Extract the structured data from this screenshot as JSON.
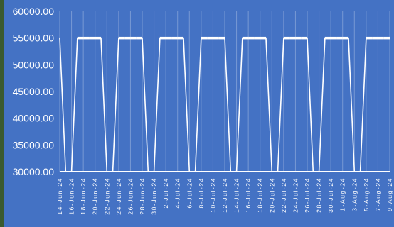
{
  "chart_data": {
    "type": "line",
    "title": "",
    "xlabel": "",
    "ylabel": "",
    "ylim": [
      30000,
      60000
    ],
    "yticks": [
      "30000.00",
      "35000.00",
      "40000.00",
      "45000.00",
      "50000.00",
      "55000.00",
      "60000.00"
    ],
    "xtick_labels": [
      "14-Jun-24",
      "16-Jun-24",
      "18-Jun-24",
      "20-Jun-24",
      "22-Jun-24",
      "24-Jun-24",
      "26-Jun-24",
      "28-Jun-24",
      "30-Jun-24",
      "2-Jul-24",
      "4-Jul-24",
      "6-Jul-24",
      "8-Jul-24",
      "10-Jul-24",
      "12-Jul-24",
      "14-Jul-24",
      "16-Jul-24",
      "18-Jul-24",
      "20-Jul-24",
      "22-Jul-24",
      "24-Jul-24",
      "26-Jul-24",
      "28-Jul-24",
      "30-Jul-24",
      "1-Aug-24",
      "3-Aug-24",
      "5-Aug-24",
      "7-Aug-24",
      "9-Aug-24"
    ],
    "x_range": [
      "14-Jun-24",
      "9-Aug-24"
    ],
    "grid": "vertical",
    "legend": "none",
    "series": [
      {
        "values_pattern": "daily values of 55000.00, dropping to 30000.00 on weekend days",
        "value_high": 55000,
        "value_low": 30000,
        "color": "#ffffff"
      }
    ],
    "colors": {
      "background": "#4472c4",
      "line": "#ffffff",
      "grid": "#8ea9db"
    }
  }
}
